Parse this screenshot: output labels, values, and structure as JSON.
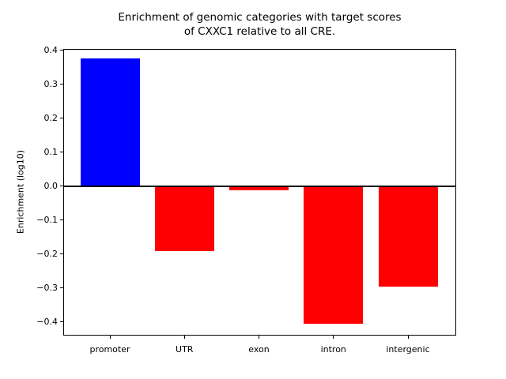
{
  "figure": {
    "background": "#ffffff",
    "text_color": "#000000",
    "axis_color": "#000000"
  },
  "chart_data": {
    "type": "bar",
    "title": "Enrichment of genomic categories with target scores of CXXC1 relative to all CRE.",
    "title_lines": [
      "Enrichment of genomic categories with target scores",
      "of CXXC1 relative to all CRE."
    ],
    "xlabel": "",
    "ylabel": "Enrichment (log10)",
    "categories": [
      "promoter",
      "UTR",
      "exon",
      "intron",
      "intergenic"
    ],
    "values": [
      0.376,
      -0.192,
      -0.012,
      -0.406,
      -0.297
    ],
    "bar_colors": [
      "#0000ff",
      "#ff0000",
      "#ff0000",
      "#ff0000",
      "#ff0000"
    ],
    "positive_color": "#0000ff",
    "negative_color": "#ff0000",
    "yticks": [
      0.4,
      0.3,
      0.2,
      0.1,
      0.0,
      -0.1,
      -0.2,
      -0.3,
      -0.4
    ],
    "ylim": [
      -0.441,
      0.404
    ],
    "grid": false,
    "legend": null,
    "zero_line": true
  }
}
